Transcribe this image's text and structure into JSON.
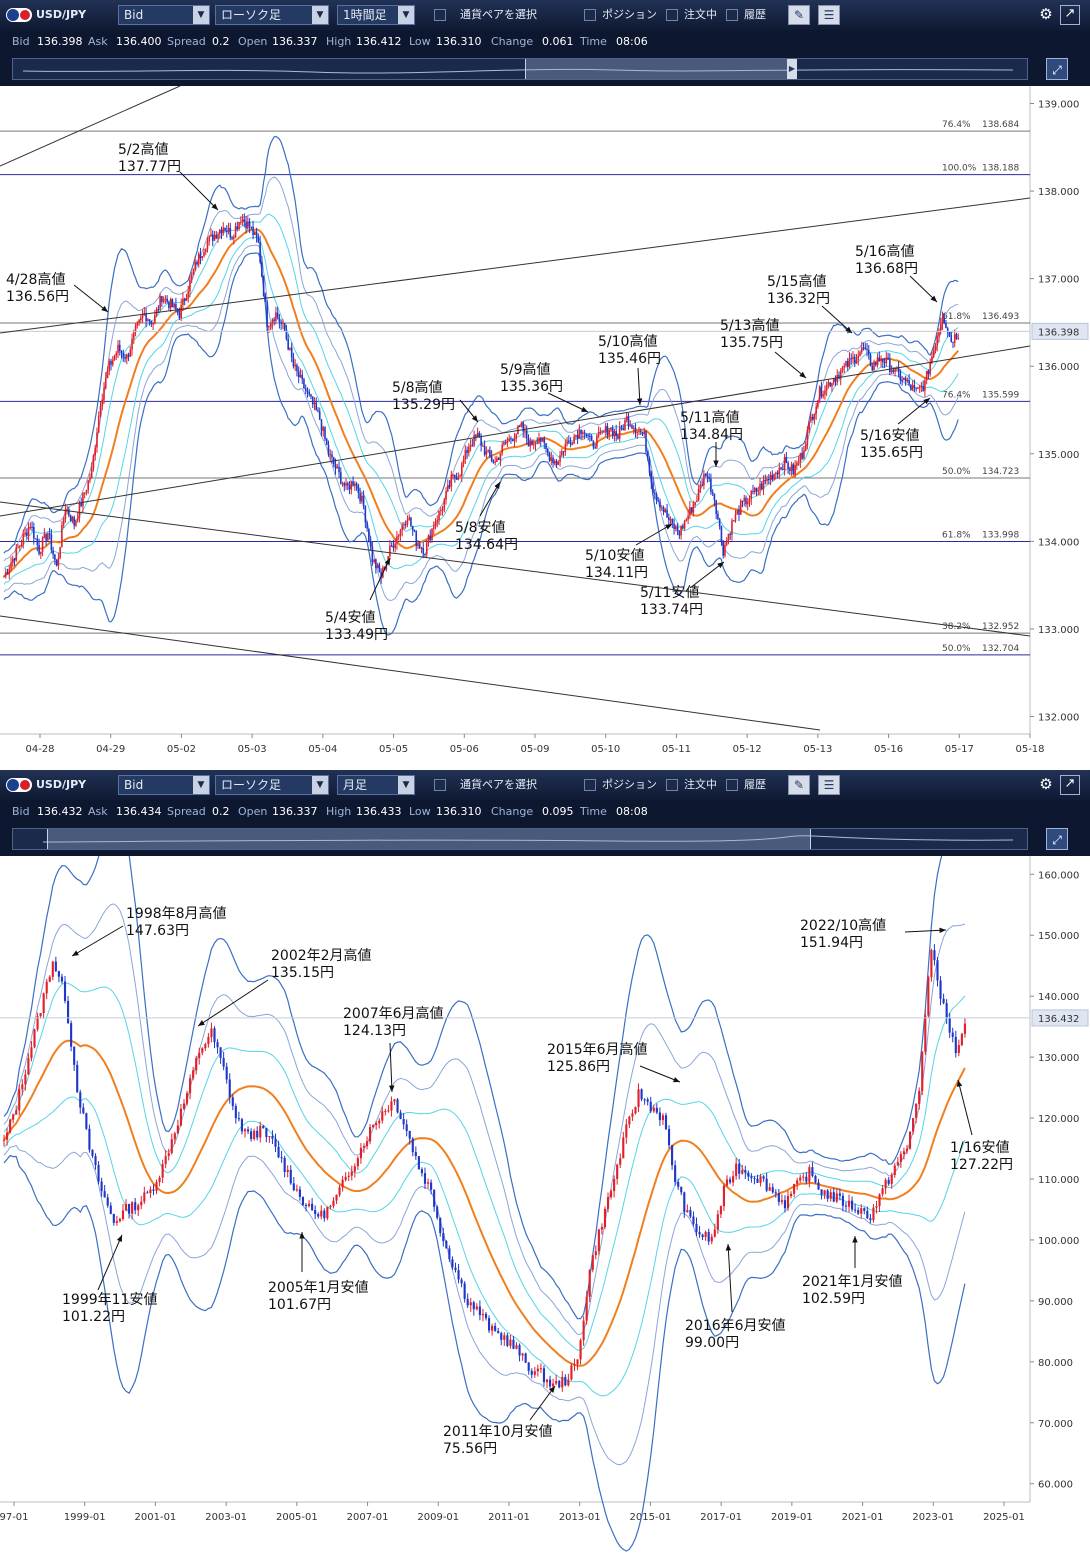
{
  "panels": [
    {
      "id": "hourly",
      "toolbar": {
        "pair": "USD/JPY",
        "price_type": "Bid",
        "chart_type": "ローソク足",
        "timeframe": "1時間足",
        "select_pair": "通貨ペアを選択",
        "position": "ポジション",
        "orders": "注文中",
        "history": "履歴"
      },
      "info": {
        "bid_label": "Bid",
        "bid": "136.398",
        "ask_label": "Ask",
        "ask": "136.400",
        "spread_label": "Spread",
        "spread": "0.2",
        "open_label": "Open",
        "open": "136.337",
        "high_label": "High",
        "high": "136.412",
        "low_label": "Low",
        "low": "136.310",
        "change_label": "Change",
        "change": "0.061",
        "time_label": "Time",
        "time": "08:06"
      },
      "chart_data": {
        "type": "candlestick",
        "ylim": [
          131.8,
          139.2
        ],
        "y_ticks": [
          "139.000",
          "138.000",
          "137.000",
          "136.000",
          "135.000",
          "134.000",
          "133.000",
          "132.000"
        ],
        "x_ticks": [
          "04-28",
          "04-29",
          "05-02",
          "05-03",
          "05-04",
          "05-05",
          "05-06",
          "05-09",
          "05-10",
          "05-11",
          "05-12",
          "05-13",
          "05-16",
          "05-17",
          "05-18"
        ],
        "current_price": "136.398",
        "close_path": [
          133.6,
          133.8,
          134.0,
          134.2,
          133.9,
          134.1,
          133.7,
          134.4,
          134.2,
          134.5,
          134.8,
          135.6,
          136.0,
          136.2,
          136.1,
          136.4,
          136.6,
          136.5,
          136.8,
          136.7,
          136.6,
          136.9,
          137.2,
          137.4,
          137.5,
          137.6,
          137.5,
          137.7,
          137.6,
          137.4,
          136.5,
          136.6,
          136.4,
          136.0,
          135.8,
          135.6,
          135.4,
          135.0,
          134.8,
          134.6,
          134.7,
          134.4,
          133.8,
          133.6,
          133.9,
          134.1,
          134.3,
          134.0,
          133.9,
          134.2,
          134.4,
          134.7,
          134.8,
          135.1,
          135.2,
          135.0,
          134.9,
          135.1,
          135.2,
          135.3,
          135.1,
          135.2,
          135.0,
          134.9,
          135.1,
          135.2,
          135.3,
          135.1,
          135.2,
          135.3,
          135.2,
          135.4,
          135.3,
          135.2,
          134.6,
          134.4,
          134.2,
          134.1,
          134.3,
          134.5,
          134.8,
          134.5,
          133.9,
          134.2,
          134.4,
          134.5,
          134.6,
          134.7,
          134.8,
          134.9,
          134.8,
          135.0,
          135.4,
          135.7,
          135.8,
          135.9,
          136.0,
          136.1,
          136.2,
          136.0,
          136.1,
          136.0,
          135.9,
          135.8,
          135.7,
          135.8,
          136.2,
          136.6,
          136.3,
          136.4
        ],
        "fib_levels": [
          {
            "label": "76.4%",
            "value": "138.684",
            "y": 138.684,
            "color": "#777777"
          },
          {
            "label": "100.0%",
            "value": "138.188",
            "y": 138.188,
            "color": "#2a2aa0"
          },
          {
            "label": "61.8%",
            "value": "136.493",
            "y": 136.493,
            "color": "#777777"
          },
          {
            "label": "76.4%",
            "value": "135.599",
            "y": 135.599,
            "color": "#2a2aa0"
          },
          {
            "label": "50.0%",
            "value": "134.723",
            "y": 134.723,
            "color": "#777777"
          },
          {
            "label": "61.8%",
            "value": "133.998",
            "y": 133.998,
            "color": "#2a2aa0"
          },
          {
            "label": "38.2%",
            "value": "132.952",
            "y": 132.952,
            "color": "#777777"
          },
          {
            "label": "50.0%",
            "value": "132.704",
            "y": 132.704,
            "color": "#2a2aa0"
          }
        ],
        "annotations": [
          {
            "line1": "4/28高値",
            "line2": "136.56円",
            "tx": 6,
            "ty": 272,
            "ax1": 74,
            "ay1": 285,
            "ax2": 108,
            "ay2": 312
          },
          {
            "line1": "5/2高値",
            "line2": "137.77円",
            "tx": 118,
            "ty": 142,
            "ax1": 180,
            "ay1": 172,
            "ax2": 218,
            "ay2": 210
          },
          {
            "line1": "5/4安値",
            "line2": "133.49円",
            "tx": 325,
            "ty": 610,
            "ax1": 370,
            "ay1": 600,
            "ax2": 390,
            "ay2": 558
          },
          {
            "line1": "5/8高値",
            "line2": "135.29円",
            "tx": 392,
            "ty": 380,
            "ax1": 460,
            "ay1": 400,
            "ax2": 478,
            "ay2": 422
          },
          {
            "line1": "5/8安値",
            "line2": "134.64円",
            "tx": 455,
            "ty": 520,
            "ax1": 480,
            "ay1": 516,
            "ax2": 500,
            "ay2": 482
          },
          {
            "line1": "5/9高値",
            "line2": "135.36円",
            "tx": 500,
            "ty": 362,
            "ax1": 548,
            "ay1": 393,
            "ax2": 588,
            "ay2": 412
          },
          {
            "line1": "5/10高値",
            "line2": "135.46円",
            "tx": 598,
            "ty": 334,
            "ax1": 638,
            "ay1": 368,
            "ax2": 640,
            "ay2": 405
          },
          {
            "line1": "5/10安値",
            "line2": "134.11円",
            "tx": 585,
            "ty": 548,
            "ax1": 636,
            "ay1": 545,
            "ax2": 672,
            "ay2": 524
          },
          {
            "line1": "5/11高値",
            "line2": "134.84円",
            "tx": 680,
            "ty": 410,
            "ax1": 716,
            "ay1": 442,
            "ax2": 716,
            "ay2": 467
          },
          {
            "line1": "5/11安値",
            "line2": "133.74円",
            "tx": 640,
            "ty": 585,
            "ax1": 690,
            "ay1": 588,
            "ax2": 724,
            "ay2": 562
          },
          {
            "line1": "5/13高値",
            "line2": "135.75円",
            "tx": 720,
            "ty": 318,
            "ax1": 775,
            "ay1": 352,
            "ax2": 806,
            "ay2": 378
          },
          {
            "line1": "5/15高値",
            "line2": "136.32円",
            "tx": 767,
            "ty": 274,
            "ax1": 822,
            "ay1": 306,
            "ax2": 852,
            "ay2": 333
          },
          {
            "line1": "5/16高値",
            "line2": "136.68円",
            "tx": 855,
            "ty": 244,
            "ax1": 910,
            "ay1": 276,
            "ax2": 937,
            "ay2": 302
          },
          {
            "line1": "5/16安値",
            "line2": "135.65円",
            "tx": 860,
            "ty": 428,
            "ax1": 898,
            "ay1": 424,
            "ax2": 930,
            "ay2": 398
          }
        ]
      }
    },
    {
      "id": "monthly",
      "toolbar": {
        "pair": "USD/JPY",
        "price_type": "Bid",
        "chart_type": "ローソク足",
        "timeframe": "月足",
        "select_pair": "通貨ペアを選択",
        "position": "ポジション",
        "orders": "注文中",
        "history": "履歴"
      },
      "info": {
        "bid_label": "Bid",
        "bid": "136.432",
        "ask_label": "Ask",
        "ask": "136.434",
        "spread_label": "Spread",
        "spread": "0.2",
        "open_label": "Open",
        "open": "136.337",
        "high_label": "High",
        "high": "136.433",
        "low_label": "Low",
        "low": "136.310",
        "change_label": "Change",
        "change": "0.095",
        "time_label": "Time",
        "time": "08:08"
      },
      "chart_data": {
        "type": "candlestick",
        "ylim": [
          57,
          163
        ],
        "y_ticks": [
          "160.000",
          "150.000",
          "140.000",
          "130.000",
          "120.000",
          "110.000",
          "100.000",
          "90.000",
          "80.000",
          "70.000",
          "60.000"
        ],
        "x_ticks": [
          "97-01",
          "1999-01",
          "2001-01",
          "2003-01",
          "2005-01",
          "2007-01",
          "2009-01",
          "2011-01",
          "2013-01",
          "2015-01",
          "2017-01",
          "2019-01",
          "2021-01",
          "2023-01",
          "2025-01"
        ],
        "current_price": "136.432",
        "close_path": [
          116,
          122,
          130,
          138,
          146,
          140,
          125,
          115,
          108,
          103,
          105,
          106,
          108,
          112,
          118,
          124,
          131,
          134,
          128,
          120,
          117,
          118,
          116,
          112,
          108,
          105,
          104,
          106,
          110,
          114,
          118,
          121,
          123,
          118,
          112,
          108,
          100,
          95,
          90,
          88,
          85,
          84,
          82,
          79,
          78,
          76,
          77,
          80,
          95,
          103,
          110,
          118,
          124,
          122,
          120,
          110,
          104,
          101,
          100,
          108,
          112,
          111,
          110,
          108,
          106,
          109,
          111,
          108,
          107,
          106,
          105,
          104,
          108,
          112,
          115,
          125,
          148,
          138,
          131,
          136
        ],
        "annotations": [
          {
            "line1": "1998年8月高値",
            "line2": "147.63円",
            "tx": 126,
            "ty": 906,
            "ax1": 123,
            "ay1": 926,
            "ax2": 72,
            "ay2": 956
          },
          {
            "line1": "1999年11安値",
            "line2": "101.22円",
            "tx": 62,
            "ty": 1292,
            "ax1": 98,
            "ay1": 1290,
            "ax2": 122,
            "ay2": 1235
          },
          {
            "line1": "2002年2月高値",
            "line2": "135.15円",
            "tx": 271,
            "ty": 948,
            "ax1": 268,
            "ay1": 980,
            "ax2": 198,
            "ay2": 1026
          },
          {
            "line1": "2005年1月安値",
            "line2": "101.67円",
            "tx": 268,
            "ty": 1280,
            "ax1": 302,
            "ay1": 1272,
            "ax2": 302,
            "ay2": 1232
          },
          {
            "line1": "2007年6月高値",
            "line2": "124.13円",
            "tx": 343,
            "ty": 1006,
            "ax1": 390,
            "ay1": 1043,
            "ax2": 392,
            "ay2": 1092
          },
          {
            "line1": "2011年10月安値",
            "line2": "75.56円",
            "tx": 443,
            "ty": 1424,
            "ax1": 530,
            "ay1": 1420,
            "ax2": 555,
            "ay2": 1386
          },
          {
            "line1": "2015年6月高値",
            "line2": "125.86円",
            "tx": 547,
            "ty": 1042,
            "ax1": 640,
            "ay1": 1066,
            "ax2": 680,
            "ay2": 1082
          },
          {
            "line1": "2016年6月安値",
            "line2": "99.00円",
            "tx": 685,
            "ty": 1318,
            "ax1": 732,
            "ay1": 1312,
            "ax2": 728,
            "ay2": 1244
          },
          {
            "line1": "2021年1月安値",
            "line2": "102.59円",
            "tx": 802,
            "ty": 1274,
            "ax1": 855,
            "ay1": 1268,
            "ax2": 855,
            "ay2": 1236
          },
          {
            "line1": "2022/10高値",
            "line2": "151.94円",
            "tx": 800,
            "ty": 918,
            "ax1": 905,
            "ay1": 932,
            "ax2": 946,
            "ay2": 930
          },
          {
            "line1": "1/16安値",
            "line2": "127.22円",
            "tx": 950,
            "ty": 1140,
            "ax1": 972,
            "ay1": 1135,
            "ax2": 958,
            "ay2": 1080
          }
        ]
      }
    }
  ]
}
